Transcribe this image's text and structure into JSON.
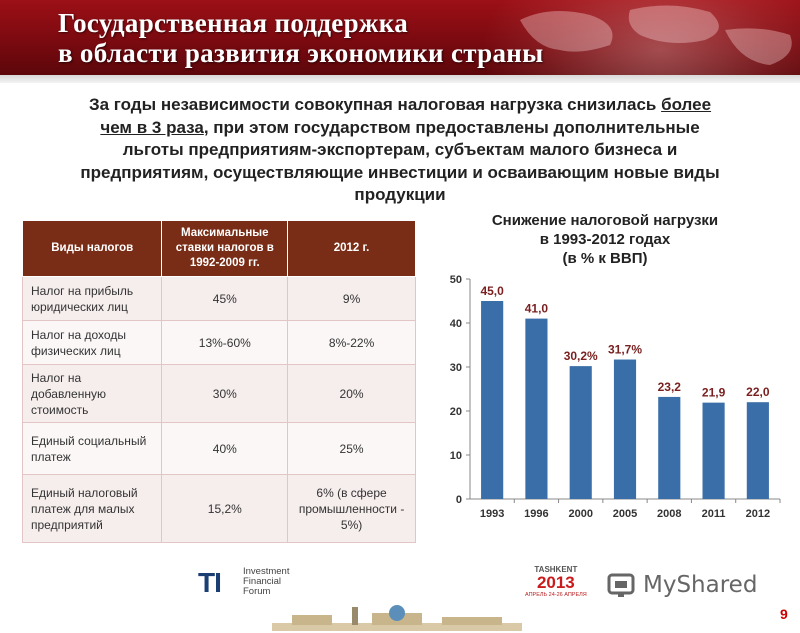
{
  "header": {
    "title_line1": "Государственная поддержка",
    "title_line2": "в области развития экономики страны"
  },
  "intro": {
    "line1_pre": "За годы независимости совокупная налоговая нагрузка снизилась ",
    "line1_underlined": "более",
    "line2_underlined": "чем в 3 раза",
    "line2_post": ", при этом государством предоставлены дополнительные",
    "line3": "льготы предприятиям-экспортерам, субъектам малого бизнеса и",
    "line4": "предприятиям, осуществляющие инвестиции и осваивающим новые виды",
    "line5": "продукции"
  },
  "table": {
    "headers": [
      "Виды налогов",
      "Максимальные ставки налогов в 1992-2009 гг.",
      "2012 г."
    ],
    "rows": [
      [
        "Налог на прибыль юридических лиц",
        "45%",
        "9%"
      ],
      [
        "Налог на доходы физических лиц",
        "13%-60%",
        "8%-22%"
      ],
      [
        "Налог на добавленную стоимость",
        "30%",
        "20%"
      ],
      [
        "Единый социальный платеж",
        "40%",
        "25%"
      ],
      [
        "Единый налоговый платеж для малых предприятий",
        "15,2%",
        "6% (в сфере промышленности - 5%)"
      ]
    ]
  },
  "chart_data": {
    "type": "bar",
    "title": "Снижение налоговой нагрузки в 1993-2012 годах (в % к ВВП)",
    "categories": [
      "1993",
      "1996",
      "2000",
      "2005",
      "2008",
      "2011",
      "2012"
    ],
    "values": [
      45.0,
      41.0,
      30.2,
      31.7,
      23.2,
      21.9,
      22.0
    ],
    "data_labels": [
      "45,0",
      "41,0",
      "30,2%",
      "31,7%",
      "23,2",
      "21,9",
      "22,0"
    ],
    "yticks": [
      "0",
      "10",
      "20",
      "30",
      "40",
      "50"
    ],
    "ylim": [
      0,
      50
    ],
    "bar_color": "#3a6ea8",
    "grid": false
  },
  "chart_title": {
    "line1": "Снижение налоговой нагрузки",
    "line2": "в 1993-2012 годах",
    "line3": "(в % к ВВП)"
  },
  "footer": {
    "ti_mark": "TI",
    "ti_line1": "Investment",
    "ti_line2": "Financial",
    "ti_line3": "Forum",
    "tashkent_city": "TASHKENT",
    "tashkent_year": "2013",
    "tashkent_dates": "АПРЕЛЬ 24-26 АПРЕЛЯ",
    "myshared": "MyShared",
    "page_number": "9"
  },
  "colors": {
    "banner": "#8b0d13",
    "table_header": "#7a2d16",
    "bar": "#3a6ea8",
    "label_dark_red": "#7a1f1f"
  }
}
